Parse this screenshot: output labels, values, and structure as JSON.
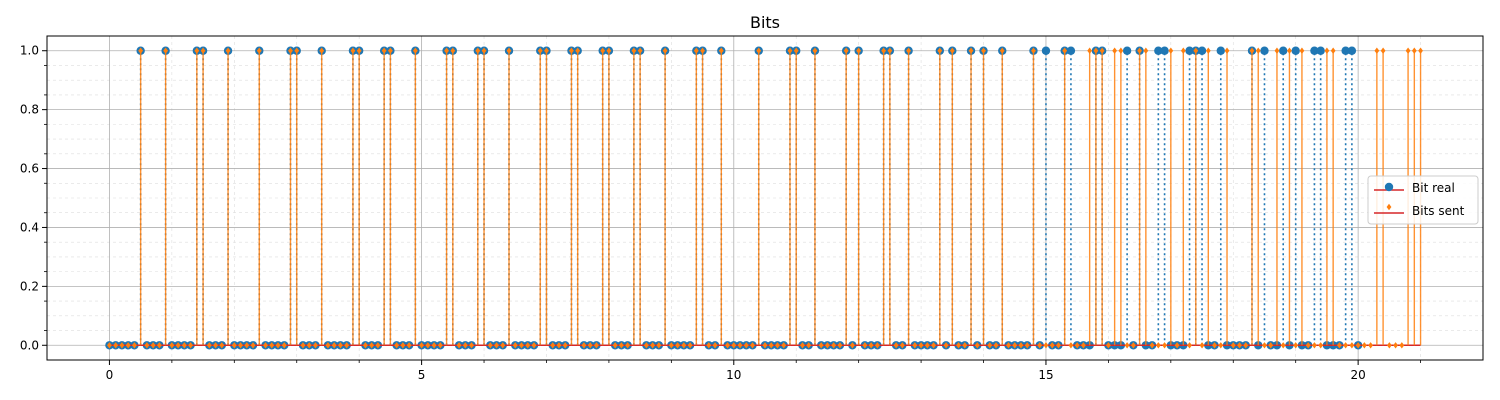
{
  "chart_data": {
    "type": "stem",
    "title": "Bits",
    "xlabel": "",
    "ylabel": "",
    "xlim": [
      -1,
      22
    ],
    "ylim": [
      -0.05,
      1.05
    ],
    "x_ticks": [
      0,
      5,
      10,
      15,
      20
    ],
    "x_tick_labels": [
      "0",
      "5",
      "10",
      "15",
      "20"
    ],
    "y_ticks": [
      0.0,
      0.2,
      0.4,
      0.6,
      0.8,
      1.0
    ],
    "y_tick_labels": [
      "0.0",
      "0.2",
      "0.4",
      "0.6",
      "0.8",
      "1.0"
    ],
    "grid": true,
    "minor_grid": true,
    "legend_position": "center-right",
    "sample_step": 0.1,
    "series": [
      {
        "name": "Bit real",
        "color": "#1f77b4",
        "marker": "circle",
        "x_start": 0.0,
        "x_end": 20.0,
        "ones_at": [
          0.5,
          0.9,
          1.4,
          1.5,
          1.9,
          2.4,
          2.9,
          3.0,
          3.4,
          3.9,
          4.0,
          4.4,
          4.5,
          4.9,
          5.4,
          5.5,
          5.9,
          6.0,
          6.4,
          6.9,
          7.0,
          7.4,
          7.5,
          7.9,
          8.0,
          8.4,
          8.5,
          8.9,
          9.4,
          9.5,
          9.8,
          10.4,
          10.9,
          11.0,
          11.3,
          11.8,
          12.0,
          12.4,
          12.5,
          12.8,
          13.3,
          13.5,
          13.8,
          14.0,
          14.3,
          14.8,
          15.0,
          15.3,
          15.4,
          15.8,
          15.9,
          16.3,
          16.5,
          16.8,
          16.9,
          17.3,
          17.4,
          17.5,
          17.8,
          18.3,
          18.5,
          18.8,
          19.0,
          19.3,
          19.4,
          19.8,
          19.9
        ]
      },
      {
        "name": "Bits sent",
        "color": "#ff7f0e",
        "marker": "diamond",
        "x_start": 0.0,
        "x_end": 21.0,
        "ones_at": [
          0.5,
          0.9,
          1.4,
          1.5,
          1.9,
          2.4,
          2.9,
          3.0,
          3.4,
          3.9,
          4.0,
          4.4,
          4.5,
          4.9,
          5.4,
          5.5,
          5.9,
          6.0,
          6.4,
          6.9,
          7.0,
          7.4,
          7.5,
          7.9,
          8.0,
          8.4,
          8.5,
          8.9,
          9.4,
          9.5,
          9.8,
          10.4,
          10.9,
          11.0,
          11.3,
          11.8,
          12.0,
          12.4,
          12.5,
          12.8,
          13.3,
          13.5,
          13.8,
          14.0,
          14.3,
          14.8,
          15.3,
          15.7,
          15.8,
          15.9,
          16.1,
          16.2,
          16.5,
          16.6,
          17.0,
          17.2,
          17.4,
          17.6,
          17.9,
          18.3,
          18.4,
          18.7,
          18.9,
          19.1,
          19.5,
          19.6,
          20.3,
          20.4,
          20.8,
          20.9,
          21.0
        ]
      }
    ]
  }
}
